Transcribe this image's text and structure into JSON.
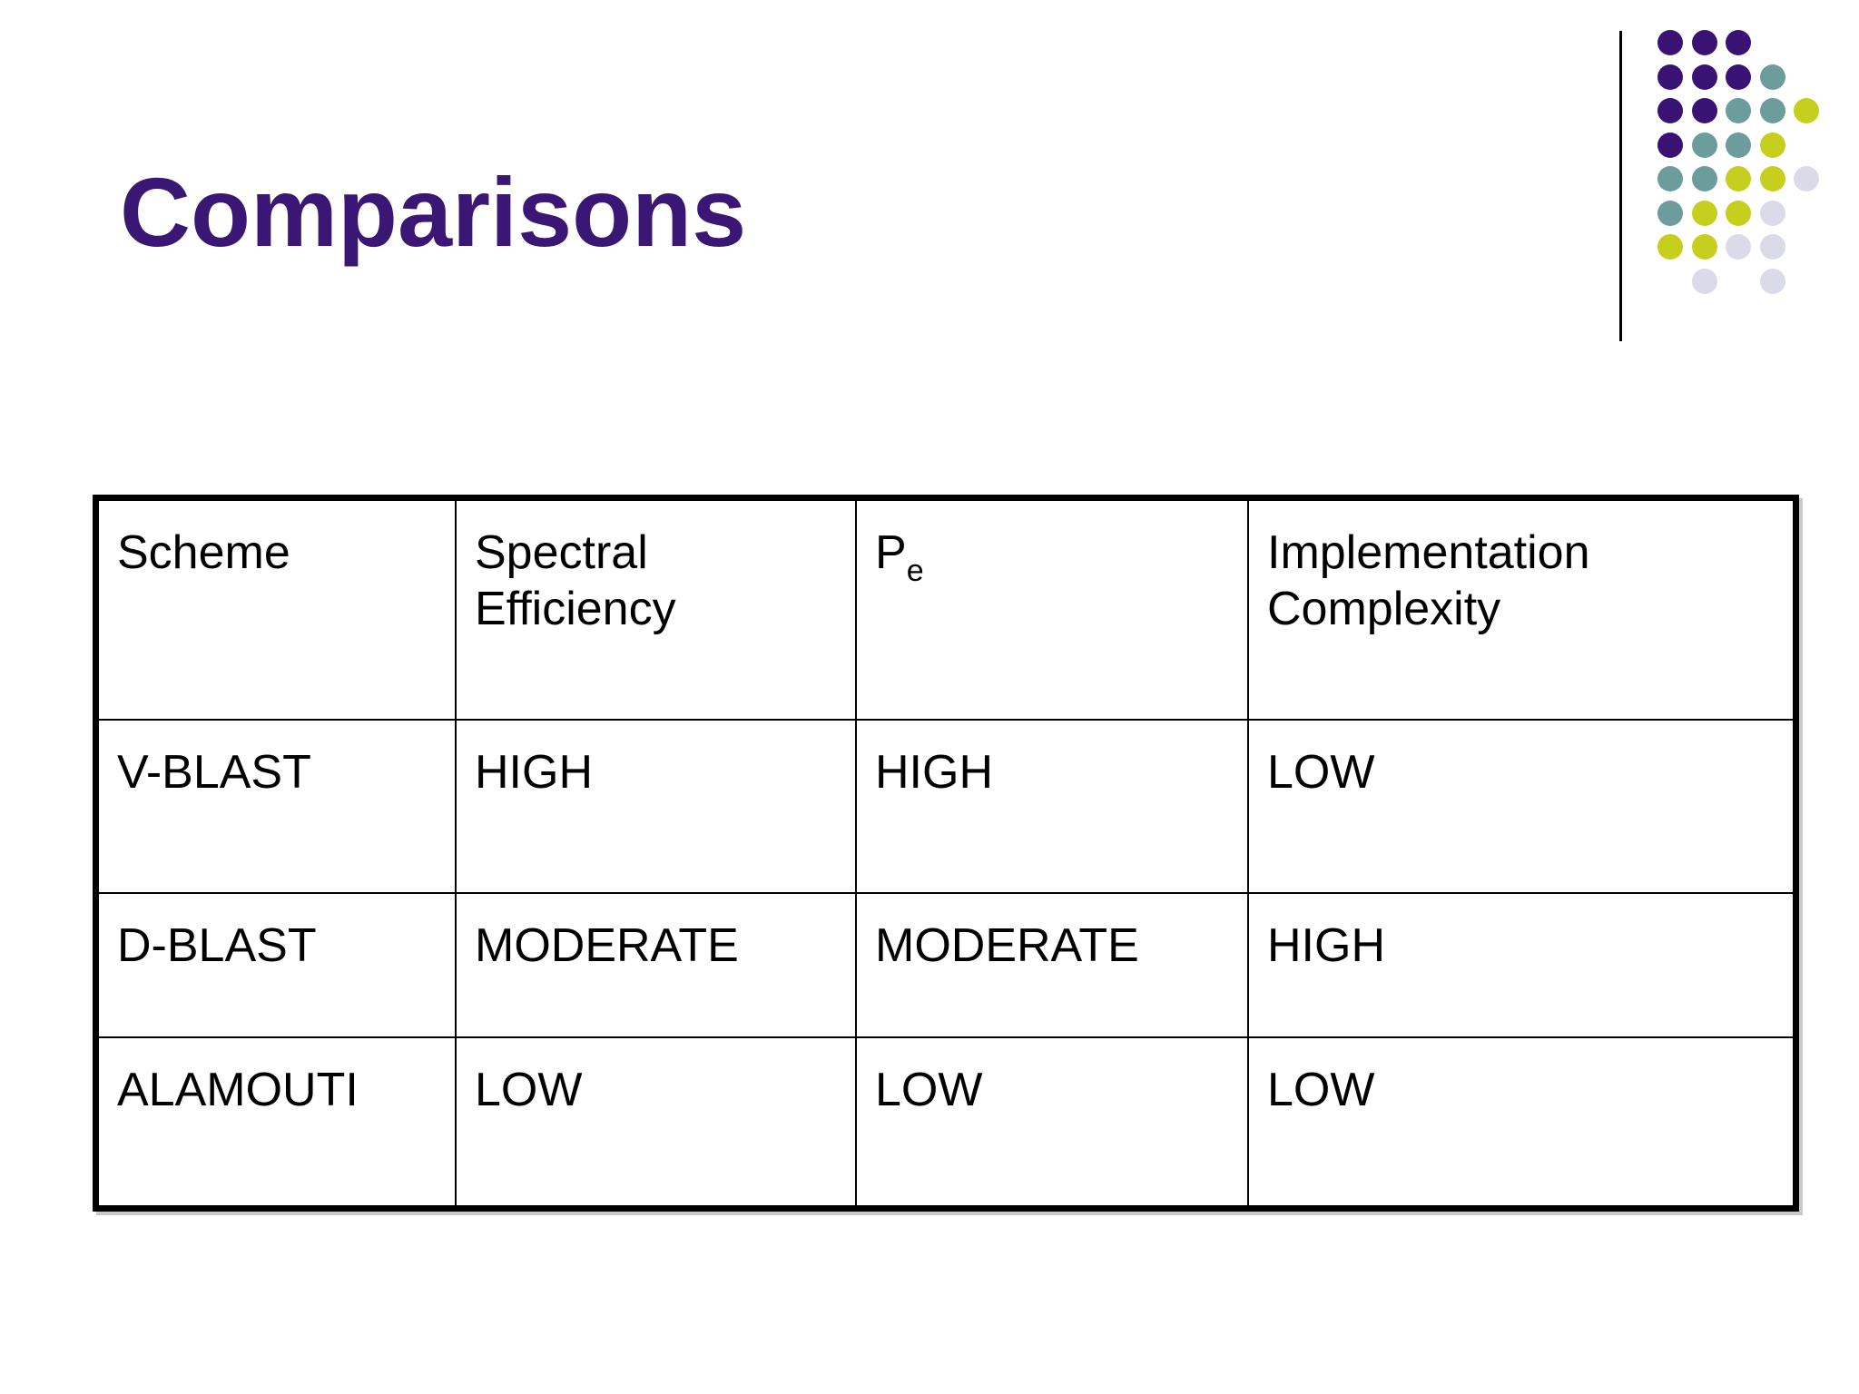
{
  "slide": {
    "title": "Comparisons"
  },
  "colors": {
    "title": "#3A1774",
    "table_border": "#000000",
    "text": "#000000",
    "dot_purple": "#3A1274",
    "dot_teal": "#6C9C9B",
    "dot_yellow": "#C6CE1E",
    "dot_lavender": "#DBDAE8"
  },
  "decor": {
    "dot_pattern": [
      "PPP..",
      "PPPT.",
      "PPTTY",
      "PTTY.",
      "TTYYL",
      "TYYL.",
      "YYLL.",
      ".L.L."
    ]
  },
  "table": {
    "headers": {
      "scheme": "Scheme",
      "spectral_efficiency": "Spectral Efficiency",
      "pe_base": "P",
      "pe_sub": "e",
      "implementation_complexity": "Implementation Complexity"
    },
    "rows": [
      {
        "cells": [
          "V-BLAST",
          "HIGH",
          "HIGH",
          "LOW"
        ]
      },
      {
        "cells": [
          "D-BLAST",
          "MODERATE",
          "MODERATE",
          "HIGH"
        ]
      },
      {
        "cells": [
          "ALAMOUTI",
          "LOW",
          "LOW",
          "LOW"
        ]
      }
    ]
  }
}
